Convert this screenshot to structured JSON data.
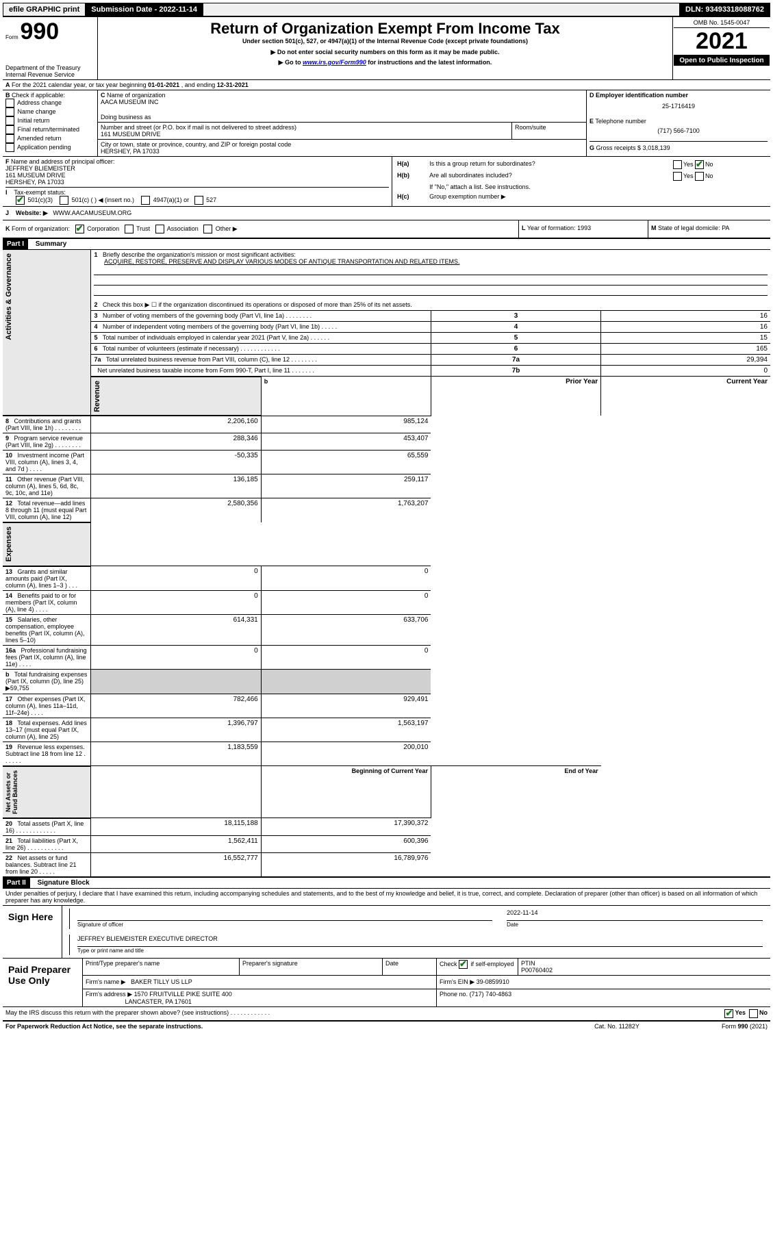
{
  "topbar": {
    "efile": "efile GRAPHIC print",
    "subdate_label": "Submission Date - ",
    "subdate": "2022-11-14",
    "dln_label": "DLN: ",
    "dln": "93493318088762"
  },
  "header": {
    "form_label": "Form",
    "form_no": "990",
    "dept": "Department of the Treasury\nInternal Revenue Service",
    "title": "Return of Organization Exempt From Income Tax",
    "sub1": "Under section 501(c), 527, or 4947(a)(1) of the Internal Revenue Code (except private foundations)",
    "sub2": "▶ Do not enter social security numbers on this form as it may be made public.",
    "sub3_pre": "▶ Go to ",
    "sub3_link": "www.irs.gov/Form990",
    "sub3_post": " for instructions and the latest information.",
    "omb": "OMB No. 1545-0047",
    "year": "2021",
    "open": "Open to Public Inspection"
  },
  "A": {
    "text_pre": "For the 2021 calendar year, or tax year beginning ",
    "begin": "01-01-2021",
    "mid": " , and ending ",
    "end": "12-31-2021"
  },
  "B": {
    "label": "Check if applicable:",
    "opts": [
      "Address change",
      "Name change",
      "Initial return",
      "Final return/terminated",
      "Amended return",
      "Application pending"
    ]
  },
  "C": {
    "name_label": "Name of organization",
    "name": "AACA MUSEUM INC",
    "dba_label": "Doing business as",
    "addr_label": "Number and street (or P.O. box if mail is not delivered to street address)",
    "room_label": "Room/suite",
    "addr": "161 MUSEUM DRIVE",
    "city_label": "City or town, state or province, country, and ZIP or foreign postal code",
    "city": "HERSHEY, PA  17033"
  },
  "D": {
    "label": "Employer identification number",
    "val": "25-1716419"
  },
  "E": {
    "label": "Telephone number",
    "val": "(717) 566-7100"
  },
  "G": {
    "label": "Gross receipts $",
    "val": "3,018,139"
  },
  "F": {
    "label": "Name and address of principal officer:",
    "name": "JEFFREY BLIEMEISTER",
    "addr1": "161 MUSEUM DRIVE",
    "addr2": "HERSHEY, PA  17033"
  },
  "H": {
    "a": "Is this a group return for subordinates?",
    "b": "Are all subordinates included?",
    "note": "If \"No,\" attach a list. See instructions.",
    "c": "Group exemption number ▶",
    "yes": "Yes",
    "no": "No"
  },
  "I": {
    "label": "Tax-exempt status:",
    "opts": [
      "501(c)(3)",
      "501(c) (  ) ◀ (insert no.)",
      "4947(a)(1) or",
      "527"
    ]
  },
  "J": {
    "label": "Website: ▶",
    "val": "WWW.AACAMUSEUM.ORG"
  },
  "K": {
    "label": "Form of organization:",
    "opts": [
      "Corporation",
      "Trust",
      "Association",
      "Other ▶"
    ]
  },
  "L": {
    "label": "Year of formation:",
    "val": "1993"
  },
  "M": {
    "label": "State of legal domicile:",
    "val": "PA"
  },
  "part1": {
    "tag": "Part I",
    "title": "Summary"
  },
  "summary": {
    "q1_label": "Briefly describe the organization's mission or most significant activities:",
    "q1_val": "ACQUIRE, RESTORE, PRESERVE AND DISPLAY VARIOUS MODES OF ANTIQUE TRANSPORTATION AND RELATED ITEMS.",
    "q2": "Check this box ▶ ☐  if the organization discontinued its operations or disposed of more than 25% of its net assets.",
    "rows_single": [
      {
        "n": "3",
        "t": "Number of voting members of the governing body (Part VI, line 1a)   .    .    .    .    .    .    .    .",
        "box": "3",
        "v": "16"
      },
      {
        "n": "4",
        "t": "Number of independent voting members of the governing body (Part VI, line 1b)   .    .    .    .    .",
        "box": "4",
        "v": "16"
      },
      {
        "n": "5",
        "t": "Total number of individuals employed in calendar year 2021 (Part V, line 2a)   .    .    .    .    .    .",
        "box": "5",
        "v": "15"
      },
      {
        "n": "6",
        "t": "Total number of volunteers (estimate if necessary)   .    .    .    .    .    .    .    .    .    .    .    .",
        "box": "6",
        "v": "165"
      },
      {
        "n": "7a",
        "t": "Total unrelated business revenue from Part VIII, column (C), line 12   .    .    .    .    .    .    .    .",
        "box": "7a",
        "v": "29,394"
      },
      {
        "n": "",
        "t": "Net unrelated business taxable income from Form 990-T, Part I, line 11   .    .    .    .    .    .    .",
        "box": "7b",
        "v": "0"
      }
    ],
    "col_prior": "Prior Year",
    "col_current": "Current Year",
    "col_begin": "Beginning of Current Year",
    "col_end": "End of Year",
    "rows_rev": [
      {
        "n": "8",
        "t": "Contributions and grants (Part VIII, line 1h)   .    .    .    .    .    .    .    .",
        "p": "2,206,160",
        "c": "985,124"
      },
      {
        "n": "9",
        "t": "Program service revenue (Part VIII, line 2g)   .    .    .    .    .    .    .    .",
        "p": "288,346",
        "c": "453,407"
      },
      {
        "n": "10",
        "t": "Investment income (Part VIII, column (A), lines 3, 4, and 7d )   .    .    .    .",
        "p": "-50,335",
        "c": "65,559"
      },
      {
        "n": "11",
        "t": "Other revenue (Part VIII, column (A), lines 5, 6d, 8c, 9c, 10c, and 11e)",
        "p": "136,185",
        "c": "259,117"
      },
      {
        "n": "12",
        "t": "Total revenue—add lines 8 through 11 (must equal Part VIII, column (A), line 12)",
        "p": "2,580,356",
        "c": "1,763,207"
      }
    ],
    "rows_exp": [
      {
        "n": "13",
        "t": "Grants and similar amounts paid (Part IX, column (A), lines 1–3 )   .    .    .",
        "p": "0",
        "c": "0"
      },
      {
        "n": "14",
        "t": "Benefits paid to or for members (Part IX, column (A), line 4)   .    .    .    .",
        "p": "0",
        "c": "0"
      },
      {
        "n": "15",
        "t": "Salaries, other compensation, employee benefits (Part IX, column (A), lines 5–10)",
        "p": "614,331",
        "c": "633,706"
      },
      {
        "n": "16a",
        "t": "Professional fundraising fees (Part IX, column (A), line 11e)   .    .    .    .",
        "p": "0",
        "c": "0"
      },
      {
        "n": "b",
        "t": "Total fundraising expenses (Part IX, column (D), line 25) ▶59,755",
        "p": "",
        "c": "",
        "grey": true
      },
      {
        "n": "17",
        "t": "Other expenses (Part IX, column (A), lines 11a–11d, 11f–24e)   .    .    .    .",
        "p": "782,466",
        "c": "929,491"
      },
      {
        "n": "18",
        "t": "Total expenses. Add lines 13–17 (must equal Part IX, column (A), line 25)",
        "p": "1,396,797",
        "c": "1,563,197"
      },
      {
        "n": "19",
        "t": "Revenue less expenses. Subtract line 18 from line 12   .    .    .    .    .    .",
        "p": "1,183,559",
        "c": "200,010"
      }
    ],
    "rows_net": [
      {
        "n": "20",
        "t": "Total assets (Part X, line 16)   .    .    .    .    .    .    .    .    .    .    .    .",
        "p": "18,115,188",
        "c": "17,390,372"
      },
      {
        "n": "21",
        "t": "Total liabilities (Part X, line 26)   .    .    .    .    .    .    .    .    .    .    .",
        "p": "1,562,411",
        "c": "600,396"
      },
      {
        "n": "22",
        "t": "Net assets or fund balances. Subtract line 21 from line 20   .    .    .    .    .",
        "p": "16,552,777",
        "c": "16,789,976"
      }
    ],
    "side_gov": "Activities & Governance",
    "side_rev": "Revenue",
    "side_exp": "Expenses",
    "side_net": "Net Assets or\nFund Balances"
  },
  "part2": {
    "tag": "Part II",
    "title": "Signature Block"
  },
  "sig": {
    "decl": "Under penalties of perjury, I declare that I have examined this return, including accompanying schedules and statements, and to the best of my knowledge and belief, it is true, correct, and complete. Declaration of preparer (other than officer) is based on all information of which preparer has any knowledge.",
    "sign_here": "Sign Here",
    "sig_officer": "Signature of officer",
    "date_label": "Date",
    "sig_date": "2022-11-14",
    "name_title": "JEFFREY BLIEMEISTER  EXECUTIVE DIRECTOR",
    "name_title_label": "Type or print name and title"
  },
  "prep": {
    "label": "Paid Preparer Use Only",
    "col_name": "Print/Type preparer's name",
    "col_sig": "Preparer's signature",
    "col_date": "Date",
    "check_label": "Check ☑ if self-employed",
    "ptin_label": "PTIN",
    "ptin": "P00760402",
    "firm_name_label": "Firm's name    ▶",
    "firm_name": "BAKER TILLY US LLP",
    "firm_ein_label": "Firm's EIN ▶",
    "firm_ein": "39-0859910",
    "firm_addr_label": "Firm's address ▶",
    "firm_addr1": "1570 FRUITVILLE PIKE SUITE 400",
    "firm_addr2": "LANCASTER, PA  17601",
    "phone_label": "Phone no.",
    "phone": "(717) 740-4863"
  },
  "footer": {
    "discuss": "May the IRS discuss this return with the preparer shown above? (see instructions)   .    .    .    .    .    .    .    .    .    .    .    .",
    "yes": "Yes",
    "no": "No",
    "paperwork": "For Paperwork Reduction Act Notice, see the separate instructions.",
    "cat": "Cat. No. 11282Y",
    "form": "Form 990 (2021)"
  }
}
